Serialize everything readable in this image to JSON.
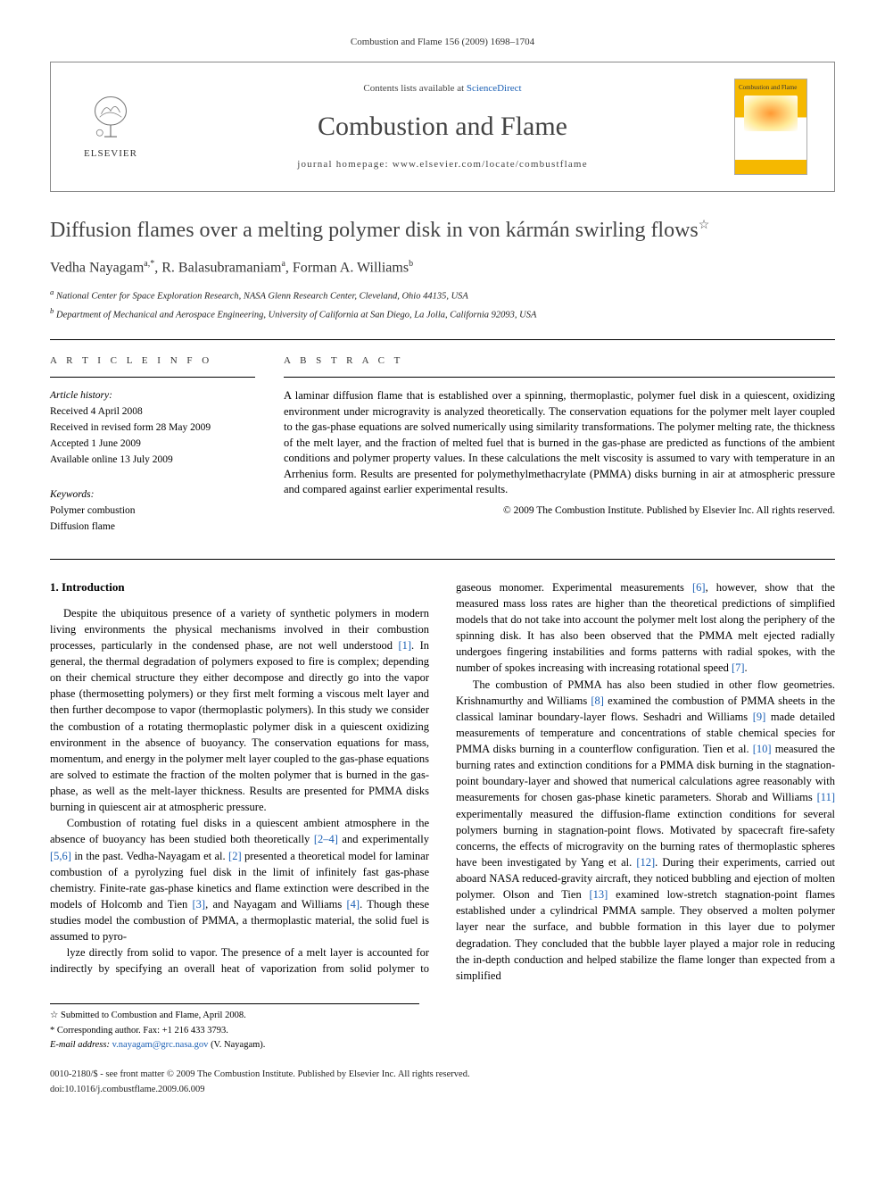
{
  "running_header": "Combustion and Flame 156 (2009) 1698–1704",
  "masthead": {
    "contents_prefix": "Contents lists available at ",
    "contents_link": "ScienceDirect",
    "journal": "Combustion and Flame",
    "homepage_prefix": "journal homepage: ",
    "homepage_url": "www.elsevier.com/locate/combustflame",
    "publisher": "ELSEVIER",
    "cover_title": "Combustion and Flame"
  },
  "title": "Diffusion flames over a melting polymer disk in von kármán swirling flows",
  "title_star": "☆",
  "authors_html": "Vedha Nayagam",
  "author1": "Vedha Nayagam",
  "author1_sup": "a,*",
  "author2": "R. Balasubramaniam",
  "author2_sup": "a",
  "author3": "Forman A. Williams",
  "author3_sup": "b",
  "affiliations": {
    "a": "National Center for Space Exploration Research, NASA Glenn Research Center, Cleveland, Ohio 44135, USA",
    "b": "Department of Mechanical and Aerospace Engineering, University of California at San Diego, La Jolla, California 92093, USA"
  },
  "info_label": "A R T I C L E   I N F O",
  "abstract_label": "A B S T R A C T",
  "history": {
    "label": "Article history:",
    "received": "Received 4 April 2008",
    "revised": "Received in revised form 28 May 2009",
    "accepted": "Accepted 1 June 2009",
    "online": "Available online 13 July 2009"
  },
  "keywords": {
    "label": "Keywords:",
    "items": [
      "Polymer combustion",
      "Diffusion flame"
    ]
  },
  "abstract": "A laminar diffusion flame that is established over a spinning, thermoplastic, polymer fuel disk in a quiescent, oxidizing environment under microgravity is analyzed theoretically. The conservation equations for the polymer melt layer coupled to the gas-phase equations are solved numerically using similarity transformations. The polymer melting rate, the thickness of the melt layer, and the fraction of melted fuel that is burned in the gas-phase are predicted as functions of the ambient conditions and polymer property values. In these calculations the melt viscosity is assumed to vary with temperature in an Arrhenius form. Results are presented for polymethylmethacrylate (PMMA) disks burning in air at atmospheric pressure and compared against earlier experimental results.",
  "copyright": "© 2009 The Combustion Institute. Published by Elsevier Inc. All rights reserved.",
  "section1_heading": "1. Introduction",
  "p1": "Despite the ubiquitous presence of a variety of synthetic polymers in modern living environments the physical mechanisms involved in their combustion processes, particularly in the condensed phase, are not well understood [1]. In general, the thermal degradation of polymers exposed to fire is complex; depending on their chemical structure they either decompose and directly go into the vapor phase (thermosetting polymers) or they first melt forming a viscous melt layer and then further decompose to vapor (thermoplastic polymers). In this study we consider the combustion of a rotating thermoplastic polymer disk in a quiescent oxidizing environment in the absence of buoyancy. The conservation equations for mass, momentum, and energy in the polymer melt layer coupled to the gas-phase equations are solved to estimate the fraction of the molten polymer that is burned in the gas-phase, as well as the melt-layer thickness. Results are presented for PMMA disks burning in quiescent air at atmospheric pressure.",
  "p2": "Combustion of rotating fuel disks in a quiescent ambient atmosphere in the absence of buoyancy has been studied both theoretically [2–4] and experimentally [5,6] in the past. Vedha-Nayagam et al. [2] presented a theoretical model for laminar combustion of a pyrolyzing fuel disk in the limit of infinitely fast gas-phase chemistry. Finite-rate gas-phase kinetics and flame extinction were described in the models of Holcomb and Tien [3], and Nayagam and Williams [4]. Though these studies model the combustion of PMMA, a thermoplastic material, the solid fuel is assumed to pyro-",
  "p3": "lyze directly from solid to vapor. The presence of a melt layer is accounted for indirectly by specifying an overall heat of vaporization from solid polymer to gaseous monomer. Experimental measurements [6], however, show that the measured mass loss rates are higher than the theoretical predictions of simplified models that do not take into account the polymer melt lost along the periphery of the spinning disk. It has also been observed that the PMMA melt ejected radially undergoes fingering instabilities and forms patterns with radial spokes, with the number of spokes increasing with increasing rotational speed [7].",
  "p4": "The combustion of PMMA has also been studied in other flow geometries. Krishnamurthy and Williams [8] examined the combustion of PMMA sheets in the classical laminar boundary-layer flows. Seshadri and Williams [9] made detailed measurements of temperature and concentrations of stable chemical species for PMMA disks burning in a counterflow configuration. Tien et al. [10] measured the burning rates and extinction conditions for a PMMA disk burning in the stagnation-point boundary-layer and showed that numerical calculations agree reasonably with measurements for chosen gas-phase kinetic parameters. Shorab and Williams [11] experimentally measured the diffusion-flame extinction conditions for several polymers burning in stagnation-point flows. Motivated by spacecraft fire-safety concerns, the effects of microgravity on the burning rates of thermoplastic spheres have been investigated by Yang et al. [12]. During their experiments, carried out aboard NASA reduced-gravity aircraft, they noticed bubbling and ejection of molten polymer. Olson and Tien [13] examined low-stretch stagnation-point flames established under a cylindrical PMMA sample. They observed a molten polymer layer near the surface, and bubble formation in this layer due to polymer degradation. They concluded that the bubble layer played a major role in reducing the in-depth conduction and helped stabilize the flame longer than expected from a simplified",
  "footnotes": {
    "submitted": "Submitted to Combustion and Flame, April 2008.",
    "corresp": "Corresponding author. Fax: +1 216 433 3793.",
    "email_label": "E-mail address:",
    "email": "v.nayagam@grc.nasa.gov",
    "email_who": "(V. Nayagam)."
  },
  "bottom": {
    "issn": "0010-2180/$ - see front matter © 2009 The Combustion Institute. Published by Elsevier Inc. All rights reserved.",
    "doi": "doi:10.1016/j.combustflame.2009.06.009"
  },
  "colors": {
    "link": "#1a5fb4",
    "rule": "#000000",
    "cover_accent": "#f5b800"
  }
}
